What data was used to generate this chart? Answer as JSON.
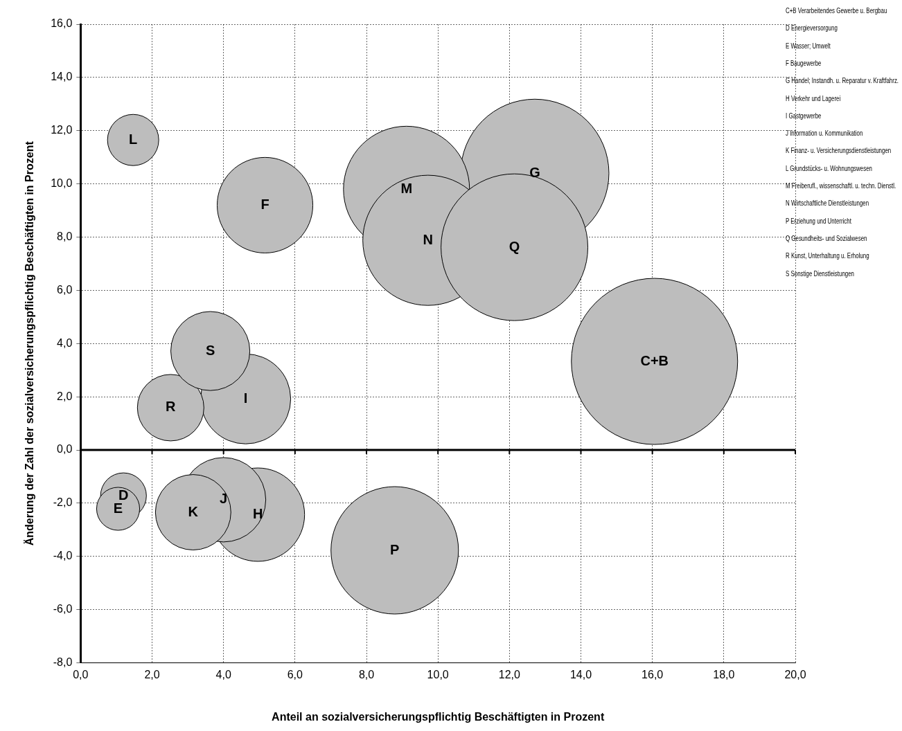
{
  "chart_data": {
    "type": "bubble",
    "xlabel": "Anteil an sozialversicherungspflichtig Beschäftigten in Prozent",
    "ylabel": "Änderung der Zahl der sozialversicherungspflichtig Beschäftigten in Prozent",
    "xlim": [
      0,
      20
    ],
    "ylim": [
      -8,
      16
    ],
    "xticks": [
      {
        "value": 0,
        "label": "0,0"
      },
      {
        "value": 2,
        "label": "2,0"
      },
      {
        "value": 4,
        "label": "4,0"
      },
      {
        "value": 6,
        "label": "6,0"
      },
      {
        "value": 8,
        "label": "8,0"
      },
      {
        "value": 10,
        "label": "10,0"
      },
      {
        "value": 12,
        "label": "12,0"
      },
      {
        "value": 14,
        "label": "14,0"
      },
      {
        "value": 16,
        "label": "16,0"
      },
      {
        "value": 18,
        "label": "18,0"
      },
      {
        "value": 20,
        "label": "20,0"
      }
    ],
    "yticks": [
      {
        "value": -8,
        "label": "-8,0"
      },
      {
        "value": -6,
        "label": "-6,0"
      },
      {
        "value": -4,
        "label": "-4,0"
      },
      {
        "value": -2,
        "label": "-2,0"
      },
      {
        "value": 0,
        "label": "0,0"
      },
      {
        "value": 2,
        "label": "2,0"
      },
      {
        "value": 4,
        "label": "4,0"
      },
      {
        "value": 6,
        "label": "6,0"
      },
      {
        "value": 8,
        "label": "8,0"
      },
      {
        "value": 10,
        "label": "10,0"
      },
      {
        "value": 12,
        "label": "12,0"
      },
      {
        "value": 14,
        "label": "14,0"
      },
      {
        "value": 16,
        "label": "16,0"
      }
    ],
    "grid": true,
    "legend": false,
    "series": [
      {
        "name": "C+B",
        "color": "#bdbdbd",
        "x": [
          16.06
        ],
        "values": [
          3.33
        ],
        "sizes": [
          1
        ]
      },
      {
        "name": "D",
        "color": "#bdbdbd",
        "x": [
          1.2
        ],
        "values": [
          -1.72
        ],
        "sizes": [
          0.076
        ]
      },
      {
        "name": "E",
        "color": "#bdbdbd",
        "x": [
          1.05
        ],
        "values": [
          -2.21
        ],
        "sizes": [
          0.067
        ]
      },
      {
        "name": "F",
        "color": "#bdbdbd",
        "x": [
          5.16
        ],
        "values": [
          9.2
        ],
        "sizes": [
          0.331
        ]
      },
      {
        "name": "G",
        "color": "#bdbdbd",
        "x": [
          12.71
        ],
        "values": [
          10.4
        ],
        "sizes": [
          0.795
        ]
      },
      {
        "name": "H",
        "color": "#bdbdbd",
        "x": [
          4.96
        ],
        "values": [
          -2.43
        ],
        "sizes": [
          0.316
        ]
      },
      {
        "name": "I",
        "color": "#bdbdbd",
        "x": [
          4.62
        ],
        "values": [
          1.92
        ],
        "sizes": [
          0.293
        ]
      },
      {
        "name": "J",
        "color": "#bdbdbd",
        "x": [
          4.0
        ],
        "values": [
          -1.87
        ],
        "sizes": [
          0.258
        ]
      },
      {
        "name": "K",
        "color": "#bdbdbd",
        "x": [
          3.15
        ],
        "values": [
          -2.34
        ],
        "sizes": [
          0.206
        ]
      },
      {
        "name": "L",
        "color": "#bdbdbd",
        "x": [
          1.47
        ],
        "values": [
          11.65
        ],
        "sizes": [
          0.095
        ]
      },
      {
        "name": "M",
        "color": "#bdbdbd",
        "x": [
          9.12
        ],
        "values": [
          9.8
        ],
        "sizes": [
          0.575
        ]
      },
      {
        "name": "N",
        "color": "#bdbdbd",
        "x": [
          9.72
        ],
        "values": [
          7.88
        ],
        "sizes": [
          0.614
        ]
      },
      {
        "name": "P",
        "color": "#bdbdbd",
        "x": [
          8.79
        ],
        "values": [
          -3.77
        ],
        "sizes": [
          0.588
        ]
      },
      {
        "name": "Q",
        "color": "#bdbdbd",
        "x": [
          12.14
        ],
        "values": [
          7.62
        ],
        "sizes": [
          0.78
        ]
      },
      {
        "name": "R",
        "color": "#bdbdbd",
        "x": [
          2.52
        ],
        "values": [
          1.59
        ],
        "sizes": [
          0.16
        ]
      },
      {
        "name": "S",
        "color": "#bdbdbd",
        "x": [
          3.63
        ],
        "values": [
          3.72
        ],
        "sizes": [
          0.226
        ]
      }
    ],
    "annotations": [
      "C+B Verarbeitendes Gewerbe u. Bergbau",
      "D Energieversorgung",
      "E Wasser; Umwelt",
      "F Baugewerbe",
      "G Handel; Instandh. u. Reparatur v. Kraftfahrz.",
      "H Verkehr und Lagerei",
      "I Gastgewerbe",
      "J Information u. Kommunikation",
      "K Finanz- u. Versicherungsdienstleistungen",
      "L Grundstücks- u. Wohnungswesen",
      "M Freiberufl., wissenschaftl. u. techn. Dienstl.",
      "N Wirtschaftliche Dienstleistungen",
      "P Erziehung und Unterricht",
      "Q Gesundheits- und Sozialwesen",
      "R Kunst, Unterhaltung u. Erholung",
      "S Sonstige Dienstleistungen"
    ]
  }
}
